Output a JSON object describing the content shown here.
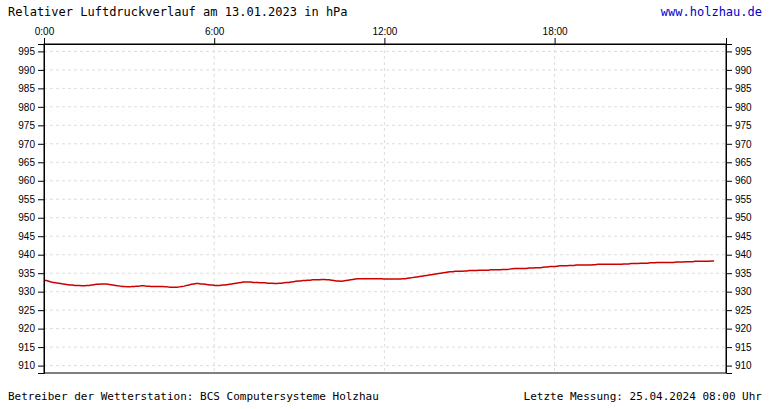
{
  "chart_data": {
    "type": "line",
    "title": "Relativer Luftdruckverlauf am 13.01.2023 in hPa",
    "annotations": [
      "www.holzhau.de",
      "Betreiber der Wetterstation: BCS Computersysteme Holzhau",
      "Letzte Messung: 25.04.2024 08:00 Uhr"
    ],
    "xlim": [
      0,
      287
    ],
    "xticks": [
      {
        "value": 0,
        "label": "0:00"
      },
      {
        "value": 71.625,
        "label": "6:00"
      },
      {
        "value": 143.25,
        "label": "12:00"
      },
      {
        "value": 214.875,
        "label": "18:00"
      }
    ],
    "ylim": [
      908,
      997
    ],
    "yticks": [
      910,
      915,
      920,
      925,
      930,
      935,
      940,
      945,
      950,
      955,
      960,
      965,
      970,
      975,
      980,
      985,
      990,
      995
    ],
    "grid": true,
    "color": "#cc0000",
    "values": [
      933.1,
      933.0,
      932.8,
      932.6,
      932.5,
      932.4,
      932.3,
      932.2,
      932.1,
      932.0,
      931.9,
      931.8,
      931.8,
      931.7,
      931.7,
      931.7,
      931.6,
      931.6,
      931.7,
      931.7,
      931.8,
      931.9,
      932.0,
      932.0,
      932.1,
      932.1,
      932.1,
      932.0,
      931.9,
      931.8,
      931.7,
      931.6,
      931.5,
      931.4,
      931.4,
      931.3,
      931.3,
      931.4,
      931.4,
      931.5,
      931.5,
      931.6,
      931.6,
      931.5,
      931.5,
      931.4,
      931.4,
      931.4,
      931.4,
      931.4,
      931.4,
      931.3,
      931.3,
      931.2,
      931.2,
      931.2,
      931.2,
      931.3,
      931.4,
      931.5,
      931.7,
      931.8,
      932.0,
      932.1,
      932.2,
      932.2,
      932.1,
      932.1,
      932.0,
      931.9,
      931.8,
      931.8,
      931.7,
      931.7,
      931.7,
      931.8,
      931.8,
      931.9,
      932.0,
      932.1,
      932.2,
      932.3,
      932.4,
      932.5,
      932.6,
      932.6,
      932.6,
      932.6,
      932.5,
      932.5,
      932.5,
      932.4,
      932.4,
      932.4,
      932.3,
      932.3,
      932.3,
      932.2,
      932.2,
      932.3,
      932.3,
      932.4,
      932.5,
      932.5,
      932.6,
      932.7,
      932.8,
      932.9,
      932.9,
      933.0,
      933.0,
      933.1,
      933.1,
      933.2,
      933.2,
      933.2,
      933.2,
      933.3,
      933.3,
      933.2,
      933.2,
      933.1,
      933.0,
      932.9,
      932.9,
      932.8,
      932.9,
      933.0,
      933.1,
      933.2,
      933.3,
      933.4,
      933.5,
      933.5,
      933.5,
      933.5,
      933.5,
      933.5,
      933.5,
      933.5,
      933.5,
      933.5,
      933.5,
      933.4,
      933.4,
      933.4,
      933.4,
      933.4,
      933.4,
      933.4,
      933.4,
      933.5,
      933.5,
      933.6,
      933.7,
      933.8,
      933.9,
      934.0,
      934.1,
      934.2,
      934.3,
      934.4,
      934.5,
      934.6,
      934.7,
      934.8,
      934.9,
      935.0,
      935.1,
      935.2,
      935.3,
      935.4,
      935.4,
      935.5,
      935.5,
      935.5,
      935.5,
      935.6,
      935.6,
      935.7,
      935.7,
      935.7,
      935.7,
      935.8,
      935.8,
      935.8,
      935.8,
      935.8,
      935.9,
      935.9,
      935.9,
      935.9,
      935.9,
      936.0,
      936.0,
      936.0,
      936.1,
      936.2,
      936.3,
      936.3,
      936.3,
      936.3,
      936.3,
      936.3,
      936.4,
      936.4,
      936.4,
      936.5,
      936.5,
      936.5,
      936.6,
      936.7,
      936.7,
      936.8,
      936.8,
      936.8,
      936.9,
      937.0,
      937.0,
      937.0,
      937.0,
      937.1,
      937.1,
      937.1,
      937.2,
      937.2,
      937.2,
      937.2,
      937.2,
      937.2,
      937.2,
      937.3,
      937.3,
      937.4,
      937.4,
      937.4,
      937.4,
      937.4,
      937.4,
      937.4,
      937.4,
      937.4,
      937.4,
      937.4,
      937.5,
      937.5,
      937.5,
      937.6,
      937.6,
      937.6,
      937.6,
      937.7,
      937.7,
      937.7,
      937.7,
      937.8,
      937.8,
      937.8,
      937.9,
      937.9,
      937.9,
      937.9,
      937.9,
      937.9,
      937.9,
      937.9,
      938.0,
      938.0,
      938.0,
      938.0,
      938.1,
      938.1,
      938.1,
      938.1,
      938.2,
      938.2,
      938.2,
      938.2,
      938.2,
      938.2,
      938.2,
      938.3,
      938.3
    ]
  }
}
